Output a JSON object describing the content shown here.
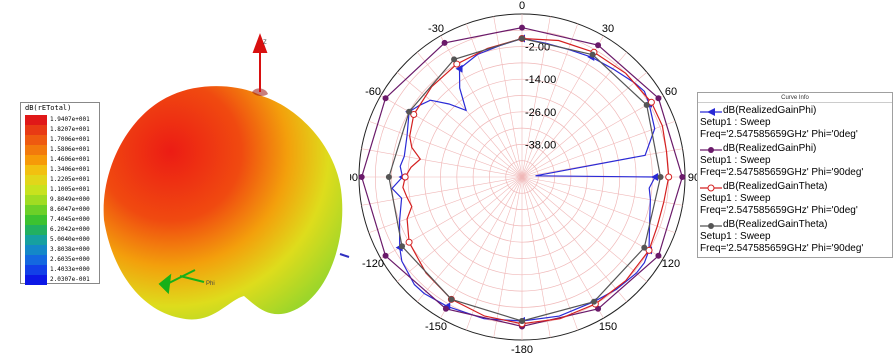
{
  "left_plot": {
    "colorbar": {
      "title": "dB(rETotal)",
      "labels": [
        "1.9407e+001",
        "1.8207e+001",
        "1.7006e+001",
        "1.5806e+001",
        "1.4606e+001",
        "1.3406e+001",
        "1.2205e+001",
        "1.1005e+001",
        "9.8049e+000",
        "8.6047e+000",
        "7.4045e+000",
        "6.2042e+000",
        "5.0040e+000",
        "3.8038e+000",
        "2.6035e+000",
        "1.4033e+000",
        "2.0307e-001"
      ],
      "colors": [
        "#e01818",
        "#e83a14",
        "#ee5a10",
        "#f27a0c",
        "#f69a08",
        "#f2c010",
        "#e2d61a",
        "#c8e21e",
        "#a0dc22",
        "#6cd028",
        "#3cc230",
        "#22b060",
        "#16a0a0",
        "#1488c8",
        "#1468e0",
        "#1240e8",
        "#0c18e6"
      ]
    },
    "axis_labels": {
      "z": "Z",
      "phi": "Phi"
    }
  },
  "chart_data": {
    "type": "polar",
    "angle_ticks": [
      0,
      30,
      60,
      90,
      120,
      150,
      -180,
      -150,
      -120,
      -90,
      -60,
      -30
    ],
    "radial_ticks": [
      -2.0,
      -14.0,
      -26.0,
      -38.0
    ],
    "radial_labels": [
      "-2.00",
      "-14.00",
      "-26.00",
      "-38.00"
    ],
    "rlim": [
      -50,
      10
    ],
    "grid": true,
    "legend_title": "Curve Info",
    "legend_position": "right",
    "series": [
      {
        "name": "dB(RealizedGainPhi)",
        "setup": "Setup1 : Sweep",
        "freq": "Freq='2.547585659GHz' Phi='0deg'",
        "color": "#2a2ad6",
        "marker": "triangle",
        "angles": [
          -180,
          -165,
          -150,
          -140,
          -135,
          -125,
          -120,
          -110,
          -100,
          -95,
          -90,
          -85,
          -80,
          -70,
          -60,
          -55,
          -50,
          -45,
          -40,
          -35,
          -30,
          -20,
          -10,
          0,
          10,
          20,
          30,
          40,
          50,
          55,
          60,
          70,
          80,
          85,
          90,
          95,
          100,
          110,
          120,
          125,
          130,
          140,
          150,
          165,
          180
        ],
        "values": [
          3,
          4,
          5,
          6,
          6,
          4,
          2,
          -2,
          -5,
          -2,
          -6,
          -5,
          -6,
          -5,
          -2,
          -4,
          -6,
          -12,
          -18,
          -10,
          -4,
          -2,
          -1,
          1,
          0,
          0,
          1,
          2,
          4,
          5,
          4,
          2,
          -4,
          -45,
          -1,
          -3,
          -2,
          0,
          4,
          5,
          5,
          4,
          3,
          3,
          3
        ]
      },
      {
        "name": "dB(RealizedGainPhi)",
        "setup": "Setup1 : Sweep",
        "freq": "Freq='2.547585659GHz' Phi='90deg'",
        "color": "#6a1a6a",
        "marker": "circle",
        "angles": [
          -180,
          -150,
          -120,
          -90,
          -60,
          -30,
          0,
          30,
          60,
          90,
          120,
          150,
          180
        ],
        "values": [
          5,
          6,
          8,
          9,
          8,
          7,
          5,
          6,
          8,
          9,
          8,
          6,
          5
        ]
      },
      {
        "name": "dB(RealizedGainTheta)",
        "setup": "Setup1 : Sweep",
        "freq": "Freq='2.547585659GHz' Phi='0deg'",
        "color": "#d42020",
        "marker": "circle-open",
        "angles": [
          -180,
          -165,
          -150,
          -135,
          -120,
          -110,
          -105,
          -100,
          -95,
          -90,
          -85,
          -80,
          -75,
          -70,
          -60,
          -45,
          -30,
          -15,
          0,
          15,
          30,
          45,
          60,
          70,
          80,
          90,
          100,
          110,
          120,
          135,
          150,
          165,
          180
        ],
        "values": [
          4,
          3,
          2,
          0,
          -2,
          -5,
          -8,
          -7,
          -6,
          -7,
          -9,
          -12,
          -8,
          -6,
          -4,
          -3,
          -2,
          -1,
          1,
          2,
          3,
          4,
          5,
          5,
          4,
          4,
          3,
          3,
          4,
          4,
          4,
          4,
          4
        ]
      },
      {
        "name": "dB(RealizedGainTheta)",
        "setup": "Setup1 : Sweep",
        "freq": "Freq='2.547585659GHz' Phi='90deg'",
        "color": "#555555",
        "marker": "circle",
        "angles": [
          -180,
          -150,
          -120,
          -90,
          -60,
          -30,
          0,
          30,
          60,
          90,
          120,
          150,
          180
        ],
        "values": [
          3,
          2,
          1,
          -1,
          -2,
          0,
          1,
          2,
          3,
          1,
          2,
          3,
          3
        ]
      }
    ]
  }
}
